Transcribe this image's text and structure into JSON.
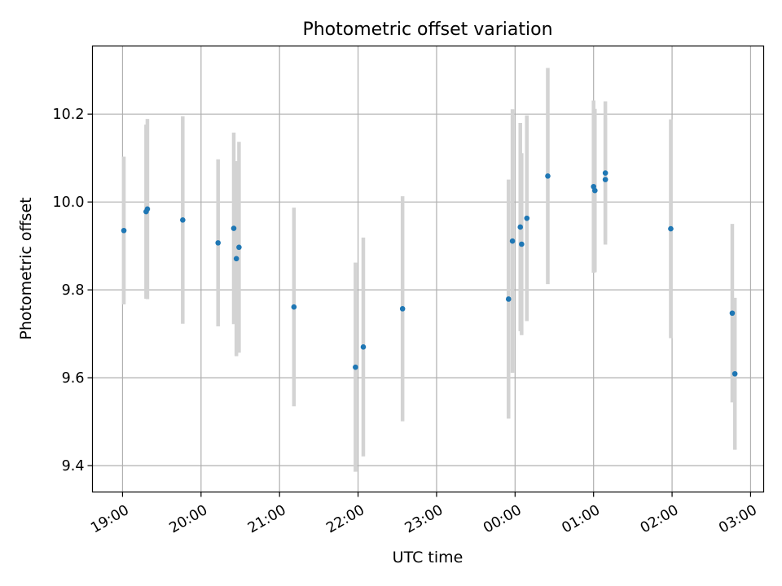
{
  "chart_data": {
    "type": "scatter",
    "title": "Photometric offset variation",
    "xlabel": "UTC time",
    "ylabel": "Photometric offset",
    "xlim": [
      "18:37",
      "03:10"
    ],
    "ylim": [
      9.34,
      10.355
    ],
    "xticks": [
      "19:00",
      "20:00",
      "21:00",
      "22:00",
      "23:00",
      "00:00",
      "01:00",
      "02:00",
      "03:00"
    ],
    "yticks": [
      "9.4",
      "9.6",
      "9.8",
      "10.0",
      "10.2"
    ],
    "grid": true,
    "colors": {
      "points": "#1f77b4",
      "errorbars": "#d3d3d3"
    },
    "points": [
      {
        "x": "19:01",
        "y": 9.935,
        "yerr": 0.168
      },
      {
        "x": "19:18",
        "y": 9.978,
        "yerr": 0.198
      },
      {
        "x": "19:19",
        "y": 9.984,
        "yerr": 0.205
      },
      {
        "x": "19:46",
        "y": 9.959,
        "yerr": 0.236
      },
      {
        "x": "20:13",
        "y": 9.907,
        "yerr": 0.19
      },
      {
        "x": "20:25",
        "y": 9.94,
        "yerr": 0.218
      },
      {
        "x": "20:27",
        "y": 9.871,
        "yerr": 0.222
      },
      {
        "x": "20:29",
        "y": 9.897,
        "yerr": 0.24
      },
      {
        "x": "21:11",
        "y": 9.761,
        "yerr": 0.226
      },
      {
        "x": "21:58",
        "y": 9.624,
        "yerr": 0.238
      },
      {
        "x": "22:04",
        "y": 9.67,
        "yerr": 0.249
      },
      {
        "x": "22:34",
        "y": 9.757,
        "yerr": 0.256
      },
      {
        "x": "23:55",
        "y": 9.779,
        "yerr": 0.272
      },
      {
        "x": "23:58",
        "y": 9.911,
        "yerr": 0.3
      },
      {
        "x": "00:04",
        "y": 9.943,
        "yerr": 0.237
      },
      {
        "x": "00:05",
        "y": 9.904,
        "yerr": 0.207
      },
      {
        "x": "00:09",
        "y": 9.963,
        "yerr": 0.234
      },
      {
        "x": "00:25",
        "y": 10.059,
        "yerr": 0.246
      },
      {
        "x": "01:00",
        "y": 10.035,
        "yerr": 0.196
      },
      {
        "x": "01:01",
        "y": 10.026,
        "yerr": 0.186
      },
      {
        "x": "01:09",
        "y": 10.066,
        "yerr": 0.163
      },
      {
        "x": "01:09",
        "y": 10.051,
        "yerr": 0.14
      },
      {
        "x": "01:59",
        "y": 9.939,
        "yerr": 0.249
      },
      {
        "x": "02:46",
        "y": 9.747,
        "yerr": 0.203
      },
      {
        "x": "02:48",
        "y": 9.609,
        "yerr": 0.173
      }
    ]
  }
}
